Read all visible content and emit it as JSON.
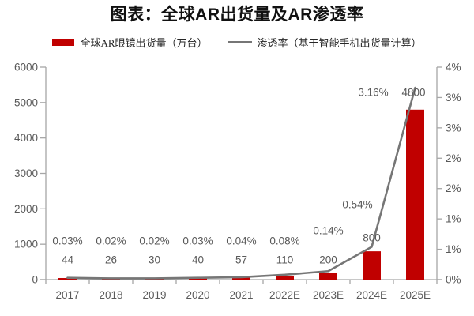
{
  "chart": {
    "title": "图表：全球AR出货量及AR渗透率",
    "legend": [
      {
        "label": "全球AR眼镜出货量（万台）",
        "swatch": "red-bar-swatch"
      },
      {
        "label": "渗透率（基于智能手机出货量计算）",
        "swatch": "gray-line-swatch"
      }
    ]
  },
  "chart_data": {
    "type": "bar",
    "title": "图表：全球AR出货量及AR渗透率",
    "categories": [
      "2017",
      "2018",
      "2019",
      "2020",
      "2021",
      "2022E",
      "2023E",
      "2024E",
      "2025E"
    ],
    "series": [
      {
        "name": "全球AR眼镜出货量（万台）",
        "type": "bar",
        "axis": "left",
        "color": "#c00000",
        "values": [
          44,
          26,
          30,
          40,
          57,
          110,
          200,
          800,
          4800
        ],
        "labels": [
          "44",
          "26",
          "30",
          "40",
          "57",
          "110",
          "200",
          "800",
          "4800"
        ]
      },
      {
        "name": "渗透率（基于智能手机出货量计算）",
        "type": "line",
        "axis": "right",
        "color": "#767676",
        "values": [
          0.03,
          0.02,
          0.02,
          0.03,
          0.04,
          0.08,
          0.14,
          0.54,
          3.16
        ],
        "labels": [
          "0.03%",
          "0.02%",
          "0.02%",
          "0.03%",
          "0.04%",
          "0.08%",
          "0.14%",
          "0.54%",
          "3.16%"
        ]
      }
    ],
    "left_axis": {
      "min": 0,
      "max": 6000,
      "step": 1000,
      "tick_labels": [
        "0",
        "1000",
        "2000",
        "3000",
        "4000",
        "5000",
        "6000"
      ]
    },
    "right_axis": {
      "min": 0,
      "max": 3.5,
      "step": 0.5,
      "tick_labels": [
        "0%",
        "1%",
        "1%",
        "2%",
        "2%",
        "3%",
        "3%",
        "4%"
      ]
    },
    "legend_position": "top",
    "grid": false,
    "label_color": "#595959",
    "axis_color": "#a6a6a6"
  }
}
